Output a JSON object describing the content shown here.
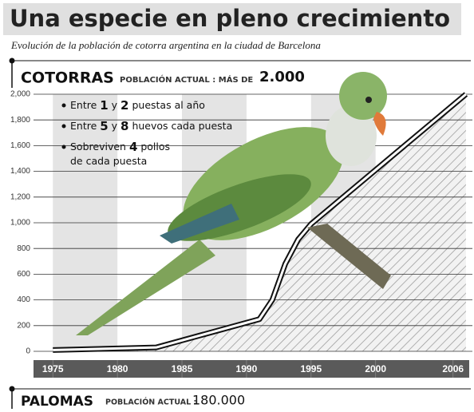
{
  "chart_data": {
    "type": "line",
    "title": "Una especie en pleno crecimiento",
    "subtitle": "Evolución de la población de cotorra argentina en la ciudad de Barcelona",
    "header": {
      "name": "COTORRAS",
      "caption": "POBLACIÓN ACTUAL : MÁS DE",
      "amount": "2.000"
    },
    "footer": {
      "name": "PALOMAS",
      "caption": "POBLACIÓN ACTUAL :",
      "amount": "180.000"
    },
    "notes": [
      {
        "lines": [
          [
            "Entre ",
            "1",
            " y ",
            "2",
            " puestas al año"
          ]
        ]
      },
      {
        "lines": [
          [
            "Entre ",
            "5",
            " y ",
            "8",
            " huevos cada puesta"
          ]
        ]
      },
      {
        "lines": [
          [
            "Sobreviven ",
            "4",
            " pollos"
          ],
          [
            "de cada puesta"
          ]
        ]
      }
    ],
    "x": [
      1975,
      1983,
      1991,
      1992,
      1993,
      1994,
      1995,
      2007
    ],
    "series": [
      {
        "name": "Cotorras",
        "color": "#111111",
        "values": [
          10,
          30,
          250,
          400,
          680,
          870,
          990,
          2000
        ]
      }
    ],
    "xlim": [
      1973.5,
      2007.5
    ],
    "xticks": [
      1975,
      1980,
      1985,
      1990,
      1995,
      2000,
      2006
    ],
    "ylim": [
      0,
      2000
    ],
    "yticks": [
      0,
      200,
      400,
      600,
      800,
      {
        "value": 1000,
        "label": "1,000"
      },
      {
        "value": 1200,
        "label": "1,200"
      },
      {
        "value": 1400,
        "label": "1,400"
      },
      {
        "value": 1600,
        "label": "1,600"
      },
      {
        "value": 1800,
        "label": "1,800"
      },
      {
        "value": 2000,
        "label": "2,000"
      }
    ],
    "grid": true
  }
}
